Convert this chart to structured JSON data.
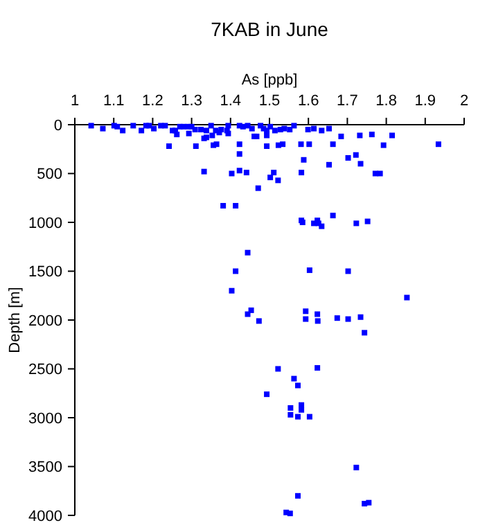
{
  "chart_data": {
    "type": "scatter",
    "title": "7KAB in June",
    "xlabel": "As [ppb]",
    "ylabel": "Depth [m]",
    "marker": "square",
    "color": "#0000ff",
    "xlim": [
      1,
      2
    ],
    "xticks": [
      1,
      1.1,
      1.2,
      1.3,
      1.4,
      1.5,
      1.6,
      1.7,
      1.8,
      1.9,
      2
    ],
    "ylim": [
      4000,
      0
    ],
    "yticks": [
      0,
      500,
      1000,
      1500,
      2000,
      2500,
      3000,
      3500,
      4000
    ],
    "x": [
      1.042,
      1.072,
      1.101,
      1.109,
      1.123,
      1.15,
      1.171,
      1.183,
      1.191,
      1.203,
      1.221,
      1.232,
      1.251,
      1.258,
      1.27,
      1.279,
      1.291,
      1.3,
      1.309,
      1.324,
      1.338,
      1.35,
      1.362,
      1.376,
      1.391,
      1.394,
      1.423,
      1.432,
      1.444,
      1.455,
      1.477,
      1.485,
      1.493,
      1.502,
      1.514,
      1.528,
      1.538,
      1.552,
      1.563,
      1.599,
      1.614,
      1.634,
      1.653,
      1.262,
      1.293,
      1.332,
      1.338,
      1.353,
      1.371,
      1.394,
      1.242,
      1.311,
      1.356,
      1.364,
      1.423,
      1.461,
      1.467,
      1.493,
      1.493,
      1.523,
      1.534,
      1.581,
      1.602,
      1.663,
      1.684,
      1.732,
      1.763,
      1.815,
      1.793,
      1.934,
      1.423,
      1.702,
      1.722,
      1.734,
      1.588,
      1.653,
      1.332,
      1.403,
      1.423,
      1.441,
      1.502,
      1.511,
      1.522,
      1.582,
      1.772,
      1.784,
      1.471,
      1.381,
      1.413,
      1.582,
      1.585,
      1.614,
      1.623,
      1.626,
      1.634,
      1.663,
      1.723,
      1.752,
      1.444,
      1.413,
      1.603,
      1.702,
      1.403,
      1.853,
      1.453,
      1.444,
      1.473,
      1.593,
      1.593,
      1.623,
      1.624,
      1.674,
      1.702,
      1.734,
      1.744,
      1.522,
      1.623,
      1.563,
      1.573,
      1.493,
      1.554,
      1.582,
      1.582,
      1.554,
      1.573,
      1.603,
      1.723,
      1.573,
      1.744,
      1.755,
      1.543,
      1.553
    ],
    "values": [
      10,
      40,
      10,
      20,
      60,
      10,
      60,
      10,
      10,
      40,
      10,
      10,
      60,
      60,
      20,
      20,
      20,
      20,
      50,
      50,
      60,
      10,
      60,
      50,
      60,
      10,
      10,
      20,
      10,
      40,
      10,
      40,
      60,
      20,
      60,
      50,
      40,
      50,
      10,
      50,
      40,
      60,
      40,
      100,
      90,
      140,
      130,
      110,
      80,
      90,
      220,
      220,
      210,
      200,
      200,
      120,
      120,
      110,
      220,
      210,
      200,
      200,
      200,
      200,
      120,
      110,
      100,
      110,
      210,
      200,
      300,
      340,
      310,
      400,
      360,
      410,
      480,
      500,
      470,
      490,
      540,
      490,
      570,
      490,
      500,
      500,
      650,
      830,
      830,
      980,
      1000,
      1010,
      980,
      1010,
      1040,
      930,
      1010,
      990,
      1310,
      1500,
      1490,
      1500,
      1700,
      1770,
      1900,
      1940,
      2010,
      1910,
      1990,
      1940,
      2010,
      1980,
      1990,
      1970,
      2130,
      2500,
      2490,
      2600,
      2670,
      2760,
      2900,
      2870,
      2920,
      2970,
      2990,
      2990,
      3510,
      3800,
      3880,
      3870,
      3970,
      3980
    ]
  }
}
